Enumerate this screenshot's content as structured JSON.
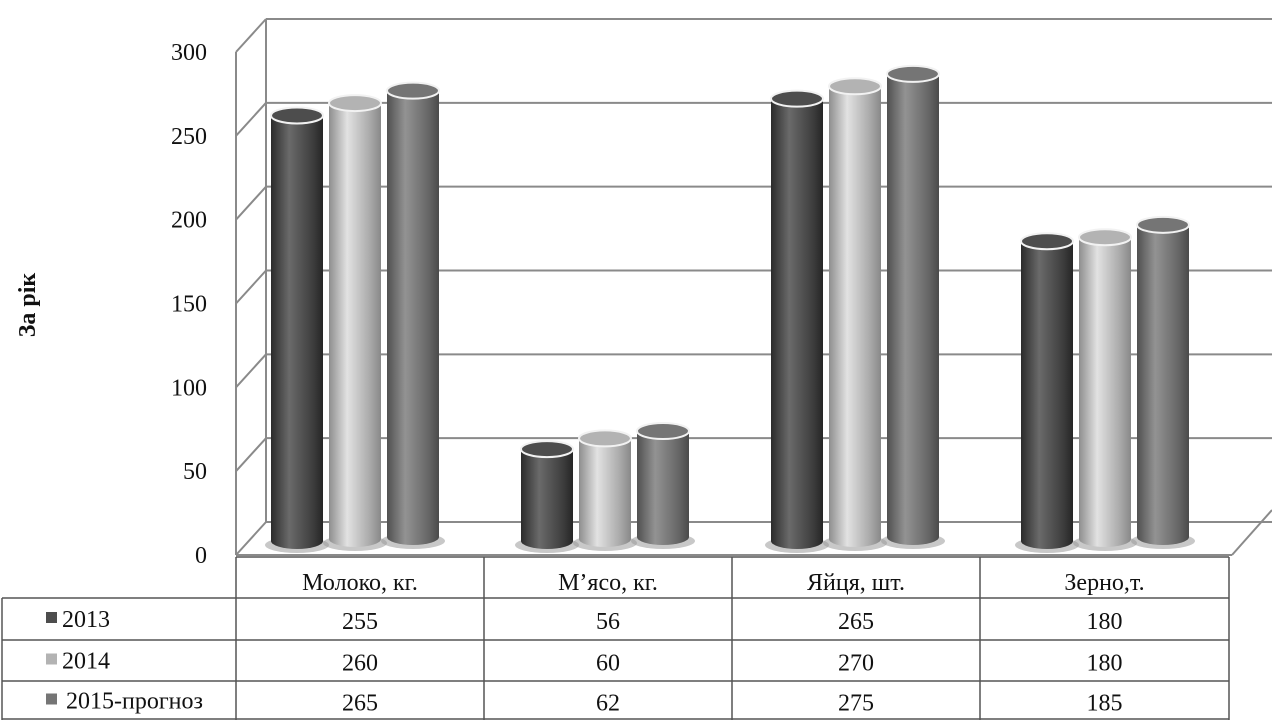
{
  "chart_data": {
    "type": "bar",
    "ylabel": "За рік",
    "ylim": [
      0,
      300
    ],
    "yticks": [
      0,
      50,
      100,
      150,
      200,
      250,
      300
    ],
    "categories": [
      "Молоко, кг.",
      "М’ясо, кг.",
      "Яйця, шт.",
      "Зерно,т."
    ],
    "series": [
      {
        "name": "2013",
        "values": [
          255,
          56,
          265,
          180
        ],
        "color": "#4d4d4d"
      },
      {
        "name": "2014",
        "values": [
          260,
          60,
          270,
          180
        ],
        "color": "#b3b3b3"
      },
      {
        "name": "2015-прогноз",
        "values": [
          265,
          62,
          275,
          185
        ],
        "color": "#757575"
      }
    ],
    "data_table": true,
    "grid": true
  }
}
